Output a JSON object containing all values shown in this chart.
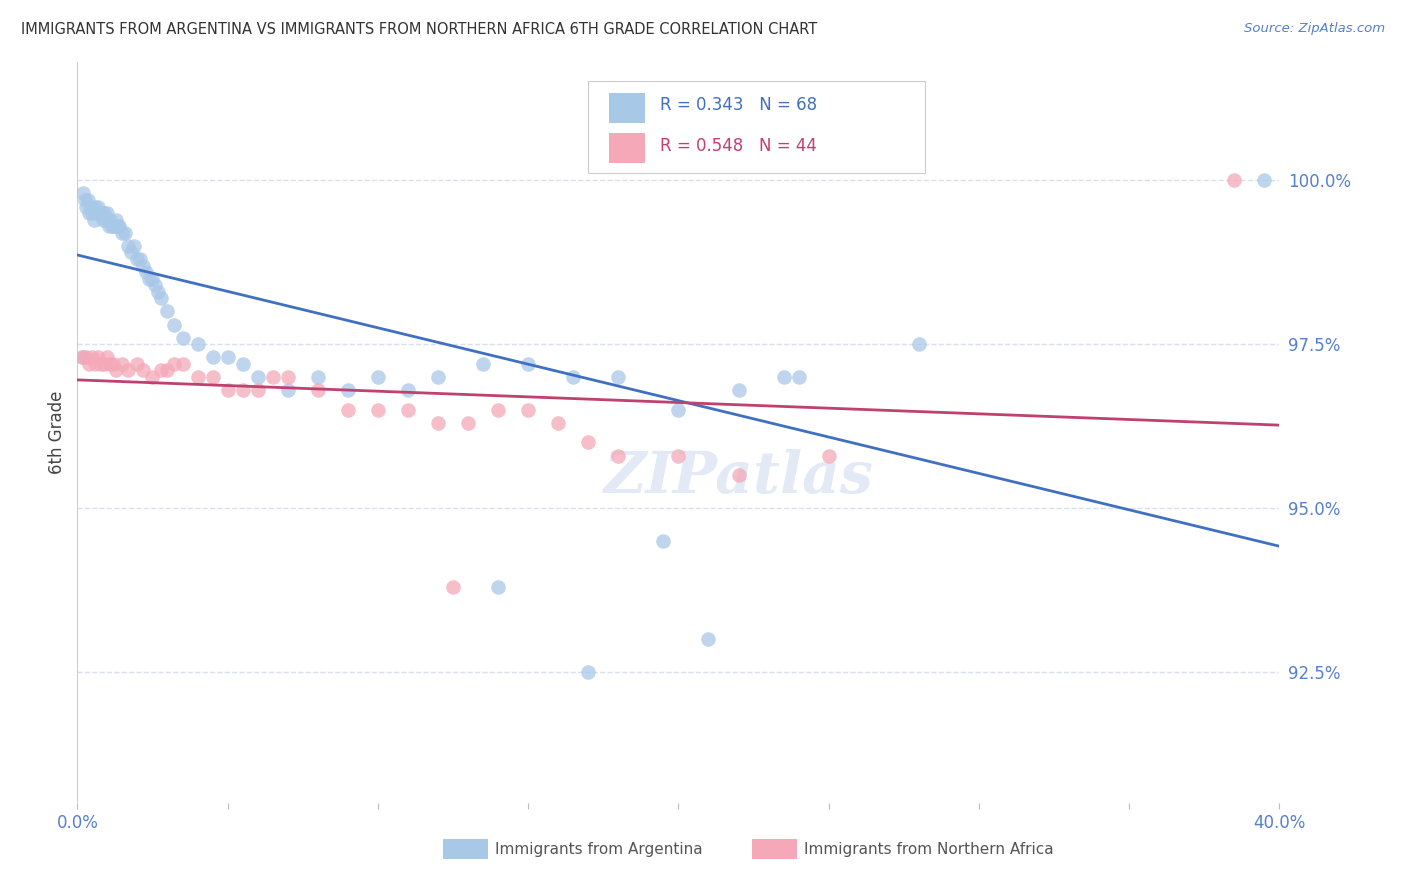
{
  "title": "IMMIGRANTS FROM ARGENTINA VS IMMIGRANTS FROM NORTHERN AFRICA 6TH GRADE CORRELATION CHART",
  "source": "Source: ZipAtlas.com",
  "ylabel": "6th Grade",
  "xlim": [
    0.0,
    40.0
  ],
  "ylim": [
    90.5,
    101.8
  ],
  "yticks": [
    92.5,
    95.0,
    97.5,
    100.0
  ],
  "ytick_labels": [
    "92.5%",
    "95.0%",
    "97.5%",
    "100.0%"
  ],
  "blue_R": 0.343,
  "blue_N": 68,
  "pink_R": 0.548,
  "pink_N": 44,
  "blue_color": "#a8c8e8",
  "pink_color": "#f4a8b8",
  "blue_line_color": "#4070c0",
  "pink_line_color": "#c04070",
  "axis_color": "#5580cc",
  "grid_color": "#d8e0f0",
  "background_color": "#ffffff",
  "blue_scatter_x": [
    0.15,
    0.2,
    0.25,
    0.3,
    0.35,
    0.4,
    0.45,
    0.5,
    0.55,
    0.6,
    0.65,
    0.7,
    0.75,
    0.8,
    0.85,
    0.9,
    0.95,
    1.0,
    1.05,
    1.1,
    1.15,
    1.2,
    1.25,
    1.3,
    1.35,
    1.4,
    1.5,
    1.6,
    1.7,
    1.8,
    1.9,
    2.0,
    2.1,
    2.2,
    2.3,
    2.4,
    2.5,
    2.6,
    2.7,
    2.8,
    3.0,
    3.2,
    3.5,
    4.0,
    4.5,
    5.0,
    5.5,
    6.0,
    7.0,
    8.0,
    9.0,
    10.0,
    11.0,
    12.0,
    13.5,
    15.0,
    16.5,
    18.0,
    20.0,
    22.0,
    23.5,
    28.0,
    17.0,
    14.0,
    19.5,
    21.0,
    24.0,
    39.5
  ],
  "blue_scatter_y": [
    97.3,
    99.8,
    99.7,
    99.6,
    99.7,
    99.5,
    99.6,
    99.5,
    99.4,
    99.6,
    99.5,
    99.6,
    99.5,
    99.5,
    99.4,
    99.5,
    99.4,
    99.5,
    99.3,
    99.4,
    99.3,
    99.3,
    99.3,
    99.4,
    99.3,
    99.3,
    99.2,
    99.2,
    99.0,
    98.9,
    99.0,
    98.8,
    98.8,
    98.7,
    98.6,
    98.5,
    98.5,
    98.4,
    98.3,
    98.2,
    98.0,
    97.8,
    97.6,
    97.5,
    97.3,
    97.3,
    97.2,
    97.0,
    96.8,
    97.0,
    96.8,
    97.0,
    96.8,
    97.0,
    97.2,
    97.2,
    97.0,
    97.0,
    96.5,
    96.8,
    97.0,
    97.5,
    92.5,
    93.8,
    94.5,
    93.0,
    97.0,
    100.0
  ],
  "pink_scatter_x": [
    0.2,
    0.3,
    0.4,
    0.5,
    0.6,
    0.7,
    0.8,
    0.9,
    1.0,
    1.1,
    1.2,
    1.3,
    1.5,
    1.7,
    2.0,
    2.2,
    2.5,
    2.8,
    3.0,
    3.2,
    3.5,
    4.0,
    4.5,
    5.0,
    5.5,
    6.0,
    6.5,
    7.0,
    8.0,
    9.0,
    10.0,
    11.0,
    12.0,
    13.0,
    14.0,
    15.0,
    16.0,
    17.0,
    18.0,
    20.0,
    22.0,
    25.0,
    12.5,
    38.5
  ],
  "pink_scatter_y": [
    97.3,
    97.3,
    97.2,
    97.3,
    97.2,
    97.3,
    97.2,
    97.2,
    97.3,
    97.2,
    97.2,
    97.1,
    97.2,
    97.1,
    97.2,
    97.1,
    97.0,
    97.1,
    97.1,
    97.2,
    97.2,
    97.0,
    97.0,
    96.8,
    96.8,
    96.8,
    97.0,
    97.0,
    96.8,
    96.5,
    96.5,
    96.5,
    96.3,
    96.3,
    96.5,
    96.5,
    96.3,
    96.0,
    95.8,
    95.8,
    95.5,
    95.8,
    93.8,
    100.0
  ]
}
